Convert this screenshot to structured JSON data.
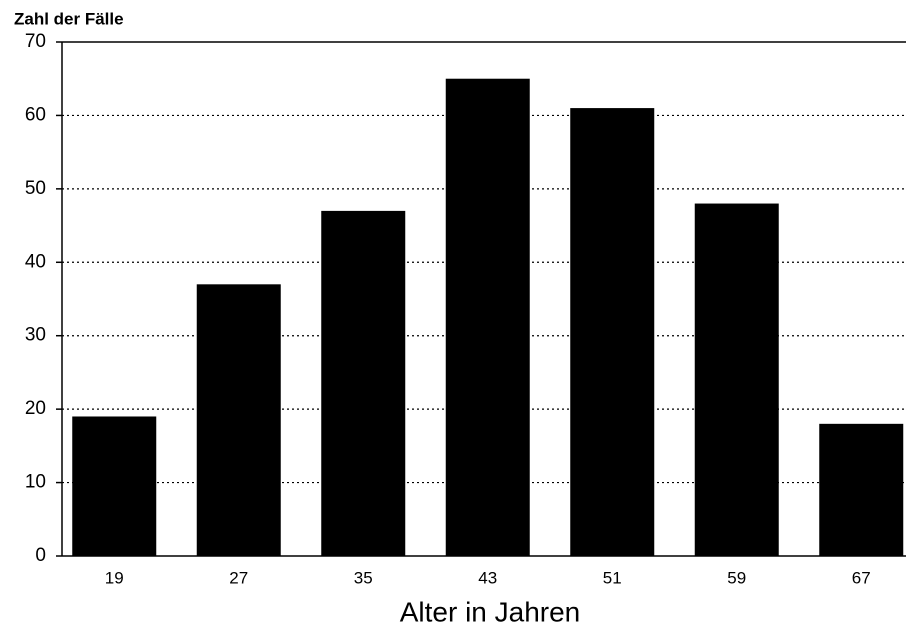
{
  "chart_data": {
    "type": "bar",
    "y_axis_label": "Zahl der Fälle",
    "x_axis_label": "Alter in Jahren",
    "categories": [
      "19",
      "27",
      "35",
      "43",
      "51",
      "59",
      "67"
    ],
    "values": [
      19,
      37,
      47,
      65,
      61,
      48,
      18
    ],
    "color": "#000000",
    "ylim": [
      0,
      70
    ],
    "yticks": [
      0,
      10,
      20,
      30,
      40,
      50,
      60,
      70
    ],
    "grid": true
  }
}
